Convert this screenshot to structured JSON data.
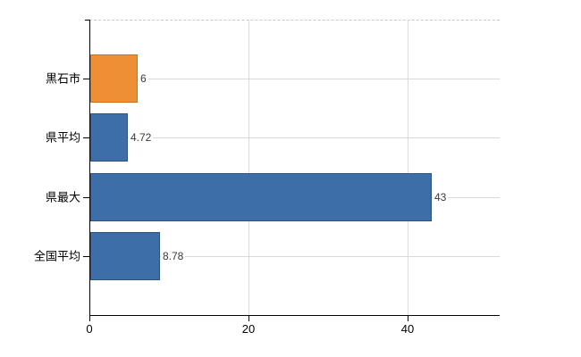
{
  "chart_data": {
    "type": "bar",
    "orientation": "horizontal",
    "title": "",
    "categories": [
      "黒石市",
      "県平均",
      "県最大",
      "全国平均"
    ],
    "values": [
      6,
      4.72,
      43,
      8.78
    ],
    "value_labels": [
      "6",
      "4.72",
      "43",
      "8.78"
    ],
    "bar_fill_colors": [
      "#ef8f35",
      "#3d6ea7",
      "#3d6ea7",
      "#3d6ea7"
    ],
    "bar_border_colors": [
      "#cf711c",
      "#2d547f",
      "#2d547f",
      "#2d547f"
    ],
    "x_ticks": [
      0,
      20,
      40
    ],
    "x_tick_labels": [
      "0",
      "20",
      "40"
    ],
    "xlim": [
      0,
      51.6
    ],
    "xlabel": "",
    "ylabel": "",
    "grid": true,
    "gridline_color": "#d5dbd5",
    "top_border_style": "dashed",
    "axis_color": "#000000",
    "value_label_color": "#3a3a3a",
    "legend": "none"
  }
}
